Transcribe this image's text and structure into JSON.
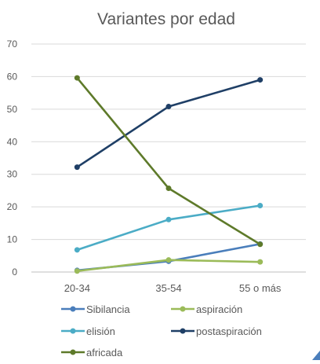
{
  "chart_data": {
    "type": "line",
    "title": "Variantes por edad",
    "xlabel": "",
    "ylabel": "",
    "categories": [
      "20-34",
      "35-54",
      "55 o más"
    ],
    "ylim": [
      0,
      70
    ],
    "yticks": [
      0,
      10,
      20,
      30,
      40,
      50,
      60,
      70
    ],
    "grid": true,
    "legend_position": "bottom",
    "series": [
      {
        "name": "Sibilancia",
        "color": "#4A7EBB",
        "values": [
          0.5,
          3.3,
          8.6
        ]
      },
      {
        "name": "aspiración",
        "color": "#9BBB59",
        "values": [
          0.3,
          3.7,
          3.1
        ]
      },
      {
        "name": "elisión",
        "color": "#4BACC6",
        "values": [
          6.8,
          16.1,
          20.4
        ]
      },
      {
        "name": "postaspiración",
        "color": "#1F3F66",
        "values": [
          32.2,
          50.8,
          59.0
        ]
      },
      {
        "name": "africada",
        "color": "#5E7A2A",
        "values": [
          59.6,
          25.7,
          8.5
        ]
      }
    ]
  }
}
